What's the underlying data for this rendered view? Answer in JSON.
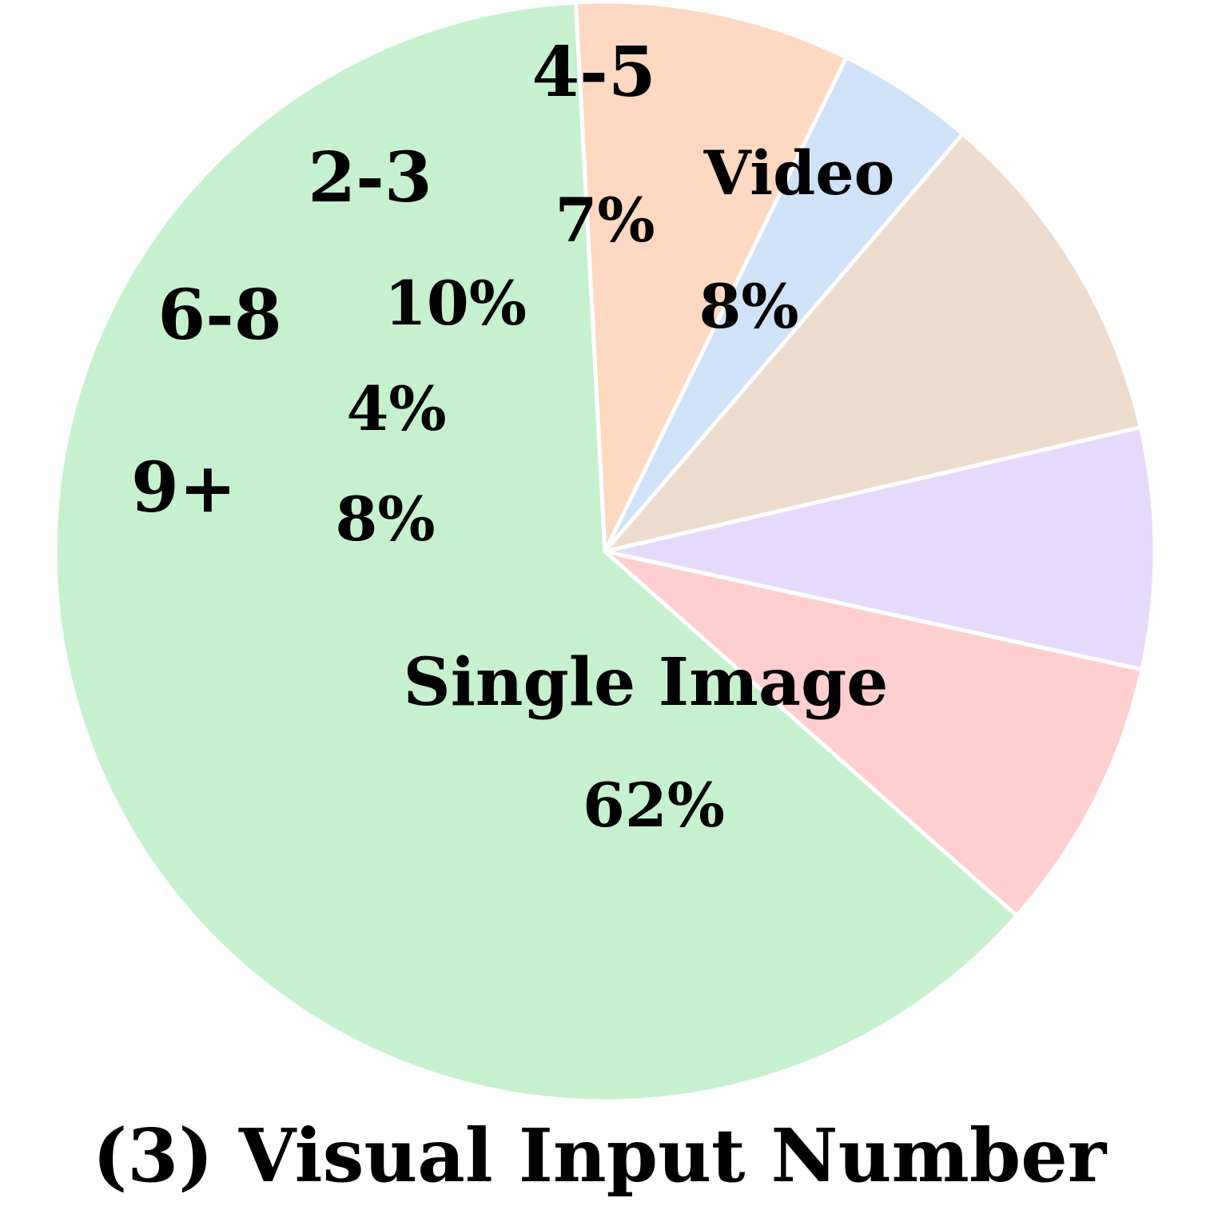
{
  "chart_data": {
    "type": "pie",
    "title": "(3) Visual Input Number",
    "start_angle_deg": 41.5,
    "direction": "clockwise",
    "slices": [
      {
        "label": "Single Image",
        "value": 62,
        "value_label": "62%",
        "color": "#c6f1cf"
      },
      {
        "label": "9+",
        "value": 8,
        "value_label": "8%",
        "color": "#fed8c0"
      },
      {
        "label": "6-8",
        "value": 4,
        "value_label": "4%",
        "color": "#cfe2f8"
      },
      {
        "label": "2-3",
        "value": 10,
        "value_label": "10%",
        "color": "#eddccd"
      },
      {
        "label": "4-5",
        "value": 7,
        "value_label": "7%",
        "color": "#e6dafc"
      },
      {
        "label": "Video",
        "value": 8,
        "value_label": "8%",
        "color": "#fecfce"
      }
    ]
  }
}
